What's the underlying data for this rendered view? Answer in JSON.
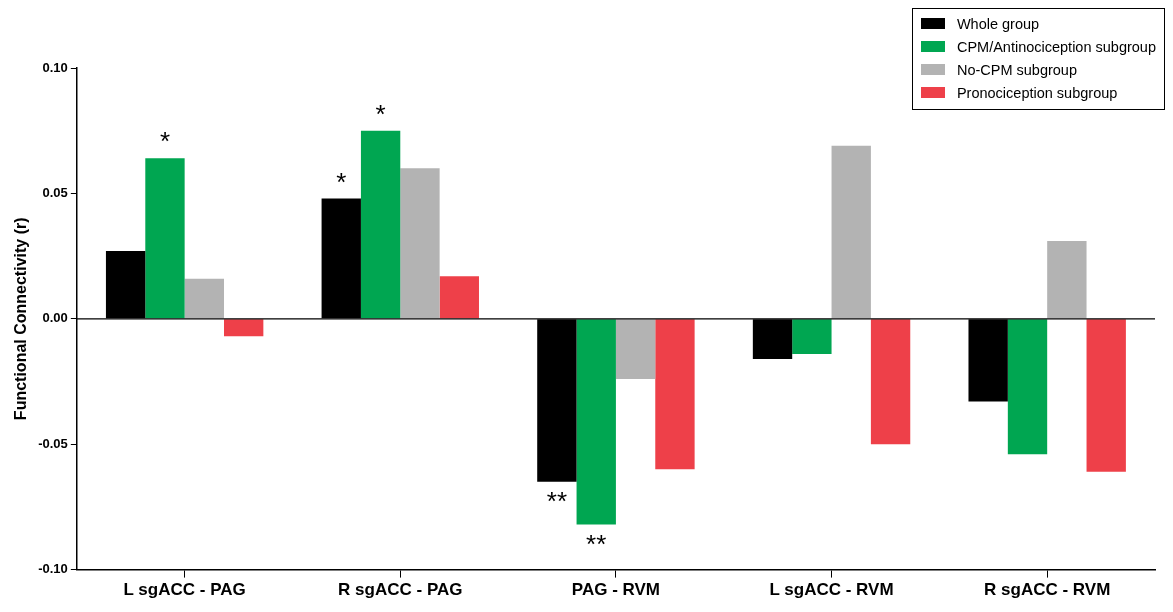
{
  "chart_data": {
    "type": "bar",
    "ylabel": "Functional Connectivity (r)",
    "categories": [
      "L sgACC - PAG",
      "R sgACC - PAG",
      "PAG - RVM",
      "L sgACC - RVM",
      "R sgACC - RVM"
    ],
    "series": [
      {
        "name": "Whole group",
        "color": "#000000",
        "values": [
          0.027,
          0.048,
          -0.065,
          -0.016,
          -0.033
        ]
      },
      {
        "name": "CPM/Antinociception subgroup",
        "color": "#00a651",
        "values": [
          0.064,
          0.075,
          -0.082,
          -0.014,
          -0.054
        ]
      },
      {
        "name": "No-CPM subgroup",
        "color": "#b3b3b3",
        "values": [
          0.016,
          0.06,
          -0.024,
          0.069,
          0.031
        ]
      },
      {
        "name": "Pronociception subgroup",
        "color": "#ee4049",
        "values": [
          -0.007,
          0.017,
          -0.06,
          -0.05,
          -0.061
        ]
      }
    ],
    "ylim": [
      -0.1,
      0.1
    ],
    "yticks": [
      {
        "value": -0.1,
        "label": "-0.10"
      },
      {
        "value": -0.05,
        "label": "-0.05"
      },
      {
        "value": 0,
        "label": "0.00"
      },
      {
        "value": 0.05,
        "label": "0.05"
      },
      {
        "value": 0.1,
        "label": "0.10"
      }
    ],
    "annotations": [
      {
        "text": "*",
        "x": "L sgACC - PAG",
        "y": 0.064
      },
      {
        "text": "*",
        "x": "R sgACC - PAG",
        "y": 0.048
      },
      {
        "text": "*",
        "x": "R sgACC - PAG",
        "y": 0.075
      },
      {
        "text": "**",
        "x": "PAG - RVM",
        "y": -0.065
      },
      {
        "text": "**",
        "x": "PAG - RVM",
        "y": -0.082
      }
    ],
    "ref_lines": [
      {
        "axis": "y",
        "value": 0,
        "color": "#000000"
      }
    ],
    "grid": false,
    "legend": "top right"
  }
}
